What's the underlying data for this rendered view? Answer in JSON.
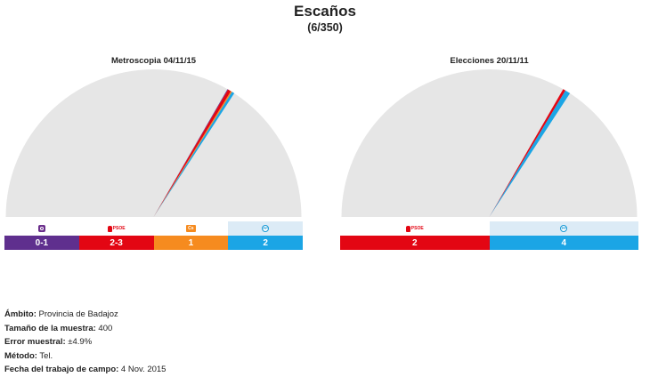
{
  "header": {
    "title": "Escaños",
    "subtitle": "(6/350)"
  },
  "colors": {
    "background_arc": "#e6e6e6",
    "podemos": "#5f2f8e",
    "psoe": "#e30613",
    "cs": "#f68b1f",
    "pp": "#1ba5e5",
    "pp_light": "#dcebf6"
  },
  "chart_data": [
    {
      "type": "pie",
      "title": "Metroscopia 04/11/15",
      "total_seats": 350,
      "parties": [
        {
          "key": "podemos",
          "icon": "podemos-logo-icon",
          "seats_label": "0-1",
          "seats": 0.5,
          "color": "#5f2f8e"
        },
        {
          "key": "psoe",
          "icon": "psoe-logo-icon",
          "seats_label": "2-3",
          "seats": 2.5,
          "color": "#e30613"
        },
        {
          "key": "cs",
          "icon": "ciudadanos-logo-icon",
          "seats_label": "1",
          "seats": 1,
          "color": "#f68b1f"
        },
        {
          "key": "pp",
          "icon": "pp-logo-icon",
          "seats_label": "2",
          "seats": 2,
          "color": "#1ba5e5"
        }
      ]
    },
    {
      "type": "pie",
      "title": "Elecciones 20/11/11",
      "total_seats": 350,
      "parties": [
        {
          "key": "psoe",
          "icon": "psoe-logo-icon",
          "seats_label": "2",
          "seats": 2,
          "color": "#e30613"
        },
        {
          "key": "pp",
          "icon": "pp-logo-icon",
          "seats_label": "4",
          "seats": 4,
          "color": "#1ba5e5"
        }
      ]
    }
  ],
  "logo_text": {
    "psoe": "PSOE",
    "cs": "Cs",
    "pp": "PP"
  },
  "footer": {
    "ambito_label": "Ámbito:",
    "ambito_value": " Provincia de Badajoz",
    "muestra_label": "Tamaño de la muestra:",
    "muestra_value": " 400",
    "error_label": "Error muestral:",
    "error_value": " ±4.9%",
    "metodo_label": "Método:",
    "metodo_value": " Tel.",
    "fecha_label": "Fecha del trabajo de campo:",
    "fecha_value": " 4 Nov. 2015"
  }
}
